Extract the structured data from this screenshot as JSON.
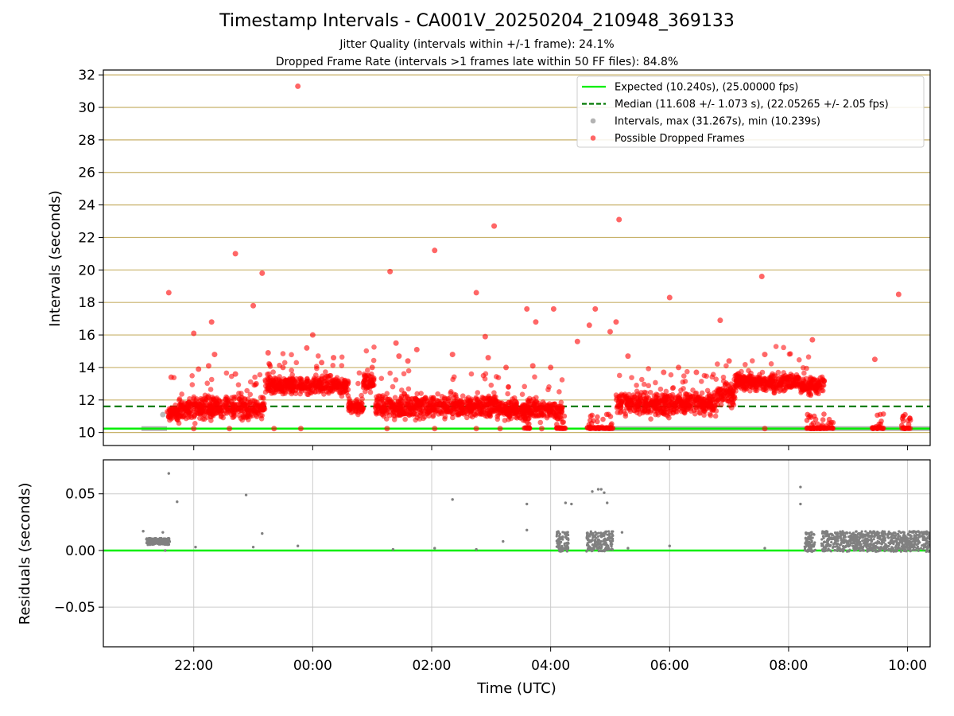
{
  "title": "Timestamp Intervals - CA001V_20250204_210948_369133",
  "subtitle1": "Jitter Quality (intervals within +/-1 frame): 24.1%",
  "subtitle2": "Dropped Frame Rate (intervals >1 frames late within 50 FF files): 84.8%",
  "colors": {
    "expected": "#00ee00",
    "median": "#007700",
    "intervals": "#808080",
    "dropped": "#ff0000",
    "hgrid": "#c8b26a",
    "grid": "#cccccc"
  },
  "chart_data": [
    {
      "type": "scatter",
      "panel": "intervals",
      "ylabel": "Intervals (seconds)",
      "ylim": [
        9.2,
        32.3
      ],
      "xlim_hours": [
        20.48,
        34.38
      ],
      "yticks": [
        "10",
        "12",
        "14",
        "16",
        "18",
        "20",
        "22",
        "24",
        "26",
        "28",
        "30",
        "32"
      ],
      "grid": "horizontal",
      "legend_position": "top-right",
      "lines": [
        {
          "name": "Expected (10.240s), (25.00000 fps)",
          "y": 10.24,
          "style": "solid"
        },
        {
          "name": "Median (11.608 +/- 1.073 s), (22.05265 +/- 2.05 fps)",
          "y": 11.608,
          "style": "dashed"
        }
      ],
      "series": [
        {
          "name": "Intervals, max (31.267s), min (10.239s)",
          "marker": "grey-dot",
          "segments": [
            {
              "x_start_hours": 21.12,
              "x_end_hours": 21.55,
              "y": 10.24,
              "note": "dense run"
            },
            {
              "x_start_hours": 28.75,
              "x_end_hours": 34.38,
              "y": 10.24,
              "note": "dense run"
            }
          ],
          "points": [
            [
              21.48,
              11.1
            ]
          ]
        },
        {
          "name": "Possible Dropped Frames",
          "marker": "red-dot",
          "dense_bands": [
            {
              "x_range": [
                21.55,
                21.75
              ],
              "y_center": 11.2,
              "y_spread": 0.5
            },
            {
              "x_range": [
                21.75,
                23.2
              ],
              "y_center": 11.5,
              "y_spread": 0.8
            },
            {
              "x_range": [
                23.2,
                24.6
              ],
              "y_center": 12.9,
              "y_spread": 0.6
            },
            {
              "x_range": [
                24.6,
                24.85
              ],
              "y_center": 11.6,
              "y_spread": 0.5
            },
            {
              "x_range": [
                24.85,
                25.05
              ],
              "y_center": 13.1,
              "y_spread": 0.6
            },
            {
              "x_range": [
                25.05,
                27.1
              ],
              "y_center": 11.6,
              "y_spread": 0.8
            },
            {
              "x_range": [
                27.1,
                28.2
              ],
              "y_center": 11.4,
              "y_spread": 0.7
            },
            {
              "x_range": [
                29.1,
                30.8
              ],
              "y_center": 11.8,
              "y_spread": 0.8
            },
            {
              "x_range": [
                30.8,
                31.1
              ],
              "y_center": 12.3,
              "y_spread": 0.8
            },
            {
              "x_range": [
                31.1,
                32.2
              ],
              "y_center": 13.1,
              "y_spread": 0.6
            },
            {
              "x_range": [
                32.2,
                32.6
              ],
              "y_center": 12.9,
              "y_spread": 0.6
            }
          ],
          "outliers": [
            [
              21.58,
              18.6
            ],
            [
              21.62,
              13.4
            ],
            [
              22.0,
              16.1
            ],
            [
              22.08,
              13.9
            ],
            [
              22.25,
              14.1
            ],
            [
              22.3,
              16.8
            ],
            [
              22.35,
              14.8
            ],
            [
              22.7,
              21.0
            ],
            [
              22.7,
              13.6
            ],
            [
              23.0,
              17.8
            ],
            [
              23.05,
              13.0
            ],
            [
              23.15,
              19.8
            ],
            [
              23.25,
              14.9
            ],
            [
              23.5,
              14.0
            ],
            [
              23.75,
              31.3
            ],
            [
              23.9,
              15.2
            ],
            [
              24.0,
              16.0
            ],
            [
              24.15,
              14.3
            ],
            [
              24.35,
              14.6
            ],
            [
              25.0,
              14.0
            ],
            [
              25.3,
              19.9
            ],
            [
              25.4,
              15.5
            ],
            [
              25.45,
              14.7
            ],
            [
              25.6,
              14.4
            ],
            [
              25.75,
              15.1
            ],
            [
              26.05,
              21.2
            ],
            [
              26.35,
              14.8
            ],
            [
              26.75,
              18.6
            ],
            [
              26.9,
              15.9
            ],
            [
              27.05,
              22.7
            ],
            [
              26.95,
              14.6
            ],
            [
              27.25,
              14.0
            ],
            [
              27.6,
              17.6
            ],
            [
              27.7,
              14.1
            ],
            [
              27.75,
              16.8
            ],
            [
              28.0,
              14.0
            ],
            [
              28.05,
              17.6
            ],
            [
              28.45,
              15.6
            ],
            [
              28.65,
              16.6
            ],
            [
              28.75,
              17.6
            ],
            [
              29.0,
              16.2
            ],
            [
              29.1,
              16.8
            ],
            [
              29.15,
              23.1
            ],
            [
              29.3,
              14.7
            ],
            [
              29.9,
              13.7
            ],
            [
              30.0,
              18.3
            ],
            [
              30.15,
              14.0
            ],
            [
              30.45,
              13.7
            ],
            [
              30.85,
              16.9
            ],
            [
              31.0,
              14.4
            ],
            [
              31.55,
              19.6
            ],
            [
              31.6,
              14.8
            ],
            [
              32.4,
              15.7
            ],
            [
              33.45,
              14.5
            ],
            [
              33.85,
              18.5
            ],
            [
              22.0,
              10.24
            ],
            [
              22.6,
              10.24
            ],
            [
              23.35,
              10.24
            ],
            [
              23.8,
              10.24
            ],
            [
              25.25,
              10.24
            ],
            [
              26.05,
              10.24
            ],
            [
              26.75,
              10.24
            ],
            [
              27.15,
              10.24
            ],
            [
              27.85,
              10.24
            ],
            [
              31.6,
              10.24
            ]
          ],
          "clusters_at_expected": [
            {
              "x_range": [
                27.55,
                27.65
              ]
            },
            {
              "x_range": [
                28.1,
                28.25
              ]
            },
            {
              "x_range": [
                28.6,
                29.05
              ]
            },
            {
              "x_range": [
                32.3,
                32.75
              ]
            },
            {
              "x_range": [
                33.4,
                33.6
              ]
            },
            {
              "x_range": [
                33.9,
                34.05
              ]
            }
          ]
        }
      ]
    },
    {
      "type": "scatter",
      "panel": "residuals",
      "xlabel": "Time (UTC)",
      "ylabel": "Residuals (seconds)",
      "ylim": [
        -0.085,
        0.08
      ],
      "yticks": [
        "−0.05",
        "0.00",
        "0.05"
      ],
      "xticks": [
        "22:00",
        "00:00",
        "02:00",
        "04:00",
        "06:00",
        "08:00",
        "10:00"
      ],
      "xtick_hours": [
        22,
        24,
        26,
        28,
        30,
        32,
        34
      ],
      "grid": "both",
      "lines": [
        {
          "name": "zero",
          "y": 0.0,
          "style": "solid"
        }
      ],
      "series": [
        {
          "name": "Residuals",
          "marker": "grey-dot",
          "bands": [
            {
              "x_range": [
                21.2,
                21.6
              ],
              "y_center": 0.008,
              "y_spread": 0.003
            },
            {
              "x_range": [
                28.1,
                28.3
              ],
              "y_center": 0.008,
              "y_spread": 0.009
            },
            {
              "x_range": [
                28.6,
                29.05
              ],
              "y_center": 0.008,
              "y_spread": 0.009
            },
            {
              "x_range": [
                32.27,
                32.45
              ],
              "y_center": 0.008,
              "y_spread": 0.009
            },
            {
              "x_range": [
                32.55,
                34.38
              ],
              "y_center": 0.008,
              "y_spread": 0.009
            }
          ],
          "points": [
            [
              21.15,
              0.017
            ],
            [
              21.48,
              0.016
            ],
            [
              21.52,
              0.0
            ],
            [
              21.58,
              0.068
            ],
            [
              21.72,
              0.043
            ],
            [
              22.03,
              0.003
            ],
            [
              22.88,
              0.049
            ],
            [
              23.0,
              0.003
            ],
            [
              23.15,
              0.015
            ],
            [
              23.75,
              0.004
            ],
            [
              25.35,
              0.001
            ],
            [
              26.05,
              0.002
            ],
            [
              26.35,
              0.045
            ],
            [
              26.75,
              0.001
            ],
            [
              27.2,
              0.008
            ],
            [
              27.6,
              0.041
            ],
            [
              27.6,
              0.018
            ],
            [
              28.25,
              0.042
            ],
            [
              28.35,
              0.041
            ],
            [
              28.7,
              0.052
            ],
            [
              28.8,
              0.054
            ],
            [
              28.85,
              0.054
            ],
            [
              28.9,
              0.051
            ],
            [
              28.95,
              0.042
            ],
            [
              29.2,
              0.016
            ],
            [
              29.3,
              0.002
            ],
            [
              30.0,
              0.004
            ],
            [
              31.6,
              0.002
            ],
            [
              32.2,
              0.056
            ],
            [
              32.2,
              0.041
            ]
          ]
        }
      ]
    }
  ]
}
